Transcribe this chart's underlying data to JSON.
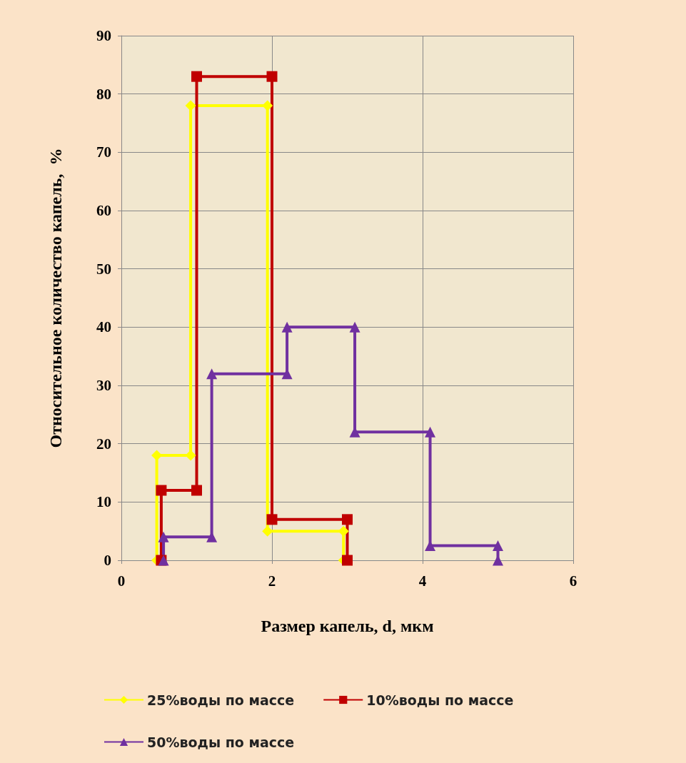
{
  "chart_data": {
    "type": "line",
    "xlabel": "Размер капель, d, мкм",
    "ylabel": "Относительное количество капель,  %",
    "xlim": [
      0,
      6
    ],
    "xticks": [
      0,
      2,
      4,
      6
    ],
    "ylim": [
      0,
      90
    ],
    "yticks": [
      0,
      10,
      20,
      30,
      40,
      50,
      60,
      70,
      80,
      90
    ],
    "grid": true,
    "legend": "bottom",
    "series": [
      {
        "name": "25%воды по массе",
        "color": "#ffff00",
        "marker": "diamond",
        "x": [
          0.47,
          0.47,
          0.92,
          0.92,
          1.94,
          1.94,
          2.95,
          2.95
        ],
        "values": [
          0,
          18,
          18,
          78,
          78,
          5,
          5,
          0
        ]
      },
      {
        "name": "10%воды по массе",
        "color": "#c00000",
        "marker": "square",
        "x": [
          0.53,
          0.53,
          1.0,
          1.0,
          2.0,
          2.0,
          3.0,
          3.0
        ],
        "values": [
          0,
          12,
          12,
          83,
          83,
          7,
          7,
          0
        ]
      },
      {
        "name": "50%воды по массе",
        "color": "#7030a0",
        "marker": "triangle",
        "x": [
          0.56,
          0.56,
          1.2,
          1.2,
          2.2,
          2.2,
          3.1,
          3.1,
          4.1,
          4.1,
          5.0,
          5.0
        ],
        "values": [
          0,
          4,
          4,
          32,
          32,
          40,
          40,
          22,
          22,
          2.5,
          2.5,
          0
        ]
      }
    ]
  }
}
